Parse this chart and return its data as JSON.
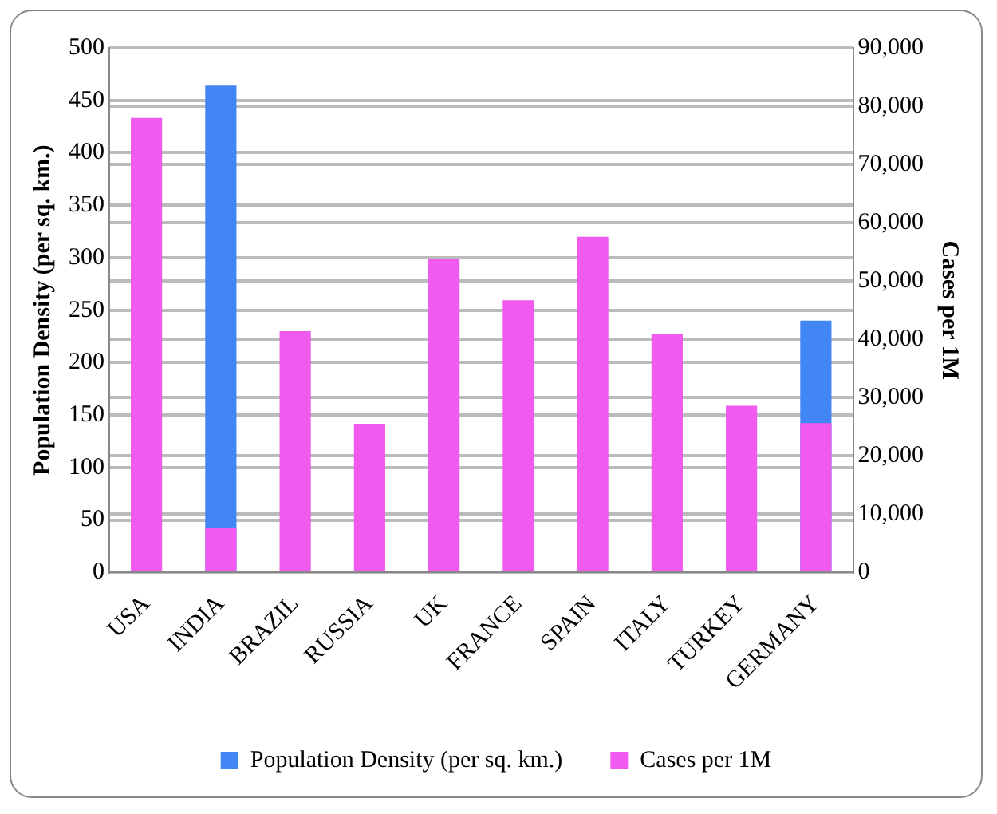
{
  "chart_data": {
    "type": "bar",
    "ylabel": "Population Density (per sq. km.)",
    "y2label": "Cases per 1M",
    "categories": [
      "USA",
      "INDIA",
      "BRAZIL",
      "RUSSIA",
      "UK",
      "FRANCE",
      "SPAIN",
      "ITALY",
      "TURKEY",
      "GERMANY"
    ],
    "series": [
      {
        "name": "Population Density (per sq. km.)",
        "color": "#4285f4",
        "values": [
          null,
          464,
          null,
          null,
          null,
          null,
          null,
          null,
          null,
          240
        ]
      },
      {
        "name": "Cases per 1M",
        "color": "#f05aee",
        "axis": "y2",
        "values": [
          78000,
          7600,
          41400,
          25500,
          53800,
          46700,
          57600,
          40900,
          28600,
          25600
        ]
      }
    ],
    "ylim": [
      0,
      500
    ],
    "yticks": [
      0,
      50,
      100,
      150,
      200,
      250,
      300,
      350,
      400,
      450,
      500
    ],
    "y2lim": [
      0,
      90000
    ],
    "y2ticks": [
      0,
      {
        "value": 10000,
        "label": "10,000"
      },
      {
        "value": 20000,
        "label": "20,000"
      },
      {
        "value": 30000,
        "label": "30,000"
      },
      {
        "value": 40000,
        "label": "40,000"
      },
      {
        "value": 50000,
        "label": "50,000"
      },
      {
        "value": 60000,
        "label": "60,000"
      },
      {
        "value": 70000,
        "label": "70,000"
      },
      {
        "value": 80000,
        "label": "80,000"
      },
      {
        "value": 90000,
        "label": "90,000"
      }
    ],
    "grid": "y",
    "legend": "bottom"
  }
}
